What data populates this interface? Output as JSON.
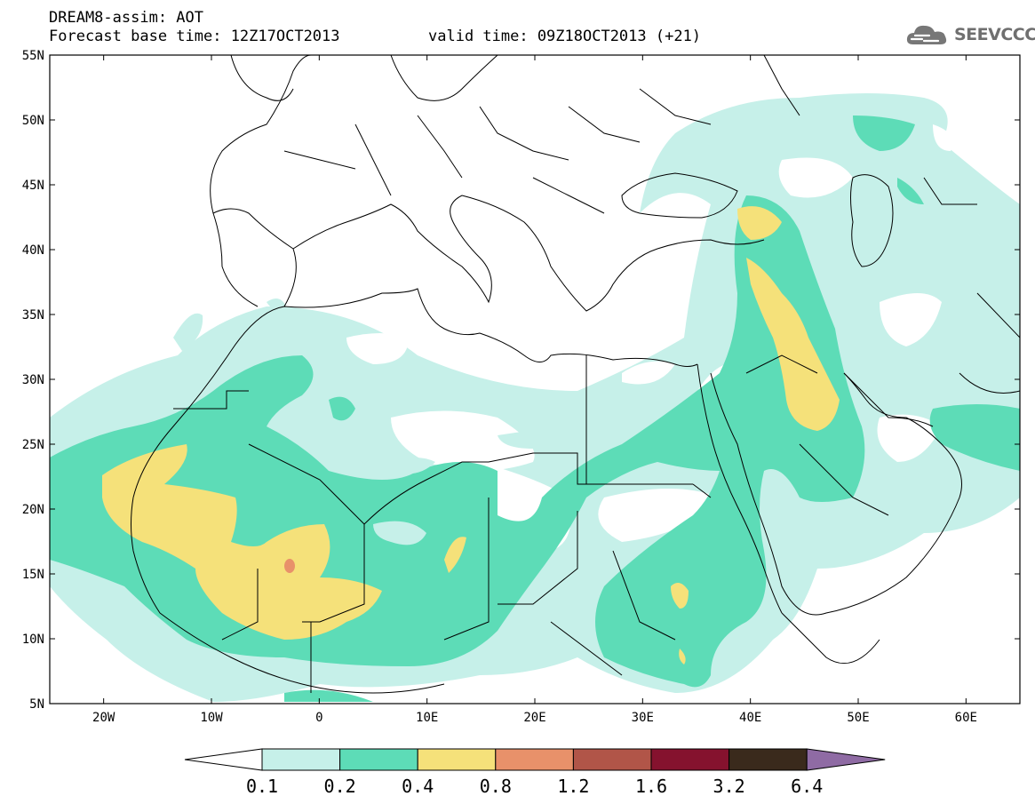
{
  "header": {
    "title": "DREAM8-assim: AOT",
    "base_time": "Forecast base time: 12Z17OCT2013",
    "valid_time": "valid time: 09Z18OCT2013 (+21)"
  },
  "logo": {
    "text": "SEEVCCC",
    "icon": "cloud-icon"
  },
  "map": {
    "lon_range": [
      -25,
      65
    ],
    "lat_range": [
      5,
      55
    ],
    "lat_labels": [
      "55N",
      "50N",
      "45N",
      "40N",
      "35N",
      "30N",
      "25N",
      "20N",
      "15N",
      "10N",
      "5N"
    ],
    "lon_labels": [
      "20W",
      "10W",
      "0",
      "10E",
      "20E",
      "30E",
      "40E",
      "50E",
      "60E"
    ]
  },
  "colorbar": {
    "labels": [
      "0.1",
      "0.2",
      "0.4",
      "0.8",
      "1.2",
      "1.6",
      "3.2",
      "6.4"
    ],
    "colors": [
      "#c6f0e9",
      "#5ddcb7",
      "#f5e17a",
      "#e8916a",
      "#b15548",
      "#85122e",
      "#3a2a1c",
      "#8f6ba4"
    ]
  }
}
